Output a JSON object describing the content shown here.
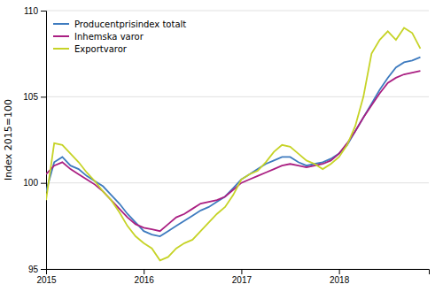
{
  "chart_data": {
    "type": "line",
    "y_label": "Index 2015=100",
    "x": [
      2015,
      2015.0833333333333,
      2015.1666666666667,
      2015.25,
      2015.3333333333333,
      2015.4166666666667,
      2015.5,
      2015.5833333333333,
      2015.6666666666667,
      2015.75,
      2015.8333333333333,
      2015.9166666666667,
      2016,
      2016.0833333333333,
      2016.1666666666667,
      2016.25,
      2016.3333333333333,
      2016.4166666666667,
      2016.5,
      2016.5833333333333,
      2016.6666666666667,
      2016.75,
      2016.8333333333333,
      2016.9166666666667,
      2017,
      2017.0833333333333,
      2017.1666666666667,
      2017.25,
      2017.3333333333333,
      2017.4166666666667,
      2017.5,
      2017.5833333333333,
      2017.6666666666667,
      2017.75,
      2017.8333333333333,
      2017.9166666666667,
      2018,
      2018.0833333333333,
      2018.1666666666667,
      2018.25,
      2018.3333333333333,
      2018.4166666666667,
      2018.5,
      2018.5833333333333,
      2018.6666666666667,
      2018.75,
      2018.8333333333333
    ],
    "xlim": [
      2015.0,
      2018.92
    ],
    "xticks": [
      2015,
      2016,
      2017,
      2018
    ],
    "ylim": [
      95,
      110
    ],
    "yticks": [
      95,
      100,
      105,
      110
    ],
    "grid": true,
    "legend": "upper left",
    "series": [
      {
        "name": "Producentprisindex totalt",
        "color": "#3e7bbf",
        "values": [
          99.5,
          101.2,
          101.5,
          101.0,
          100.8,
          100.4,
          100.1,
          99.8,
          99.3,
          98.8,
          98.2,
          97.7,
          97.2,
          97.0,
          96.9,
          97.2,
          97.5,
          97.8,
          98.1,
          98.4,
          98.6,
          98.9,
          99.2,
          99.7,
          100.2,
          100.5,
          100.8,
          101.1,
          101.3,
          101.5,
          101.5,
          101.2,
          101.0,
          101.1,
          101.2,
          101.4,
          101.7,
          102.2,
          103.0,
          103.8,
          104.6,
          105.4,
          106.1,
          106.7,
          107.0,
          107.1,
          107.3
        ]
      },
      {
        "name": "Inhemska varor",
        "color": "#aa1f82",
        "values": [
          100.5,
          101.0,
          101.2,
          100.8,
          100.5,
          100.2,
          99.9,
          99.5,
          99.0,
          98.5,
          98.0,
          97.6,
          97.4,
          97.3,
          97.2,
          97.6,
          98.0,
          98.2,
          98.5,
          98.8,
          98.9,
          99.0,
          99.2,
          99.6,
          100.0,
          100.2,
          100.4,
          100.6,
          100.8,
          101.0,
          101.1,
          101.0,
          100.9,
          101.0,
          101.1,
          101.3,
          101.7,
          102.3,
          103.0,
          103.8,
          104.5,
          105.2,
          105.8,
          106.1,
          106.3,
          106.4,
          106.5
        ]
      },
      {
        "name": "Exportvaror",
        "color": "#c6d327",
        "values": [
          99.0,
          102.3,
          102.2,
          101.7,
          101.2,
          100.6,
          100.1,
          99.5,
          99.0,
          98.3,
          97.5,
          96.9,
          96.5,
          96.2,
          95.5,
          95.7,
          96.2,
          96.5,
          96.7,
          97.2,
          97.7,
          98.2,
          98.6,
          99.3,
          100.2,
          100.5,
          100.7,
          101.2,
          101.8,
          102.2,
          102.1,
          101.7,
          101.3,
          101.1,
          100.8,
          101.1,
          101.5,
          102.2,
          103.3,
          105.0,
          107.5,
          108.3,
          108.8,
          108.3,
          109.0,
          108.7,
          107.8
        ]
      }
    ]
  }
}
